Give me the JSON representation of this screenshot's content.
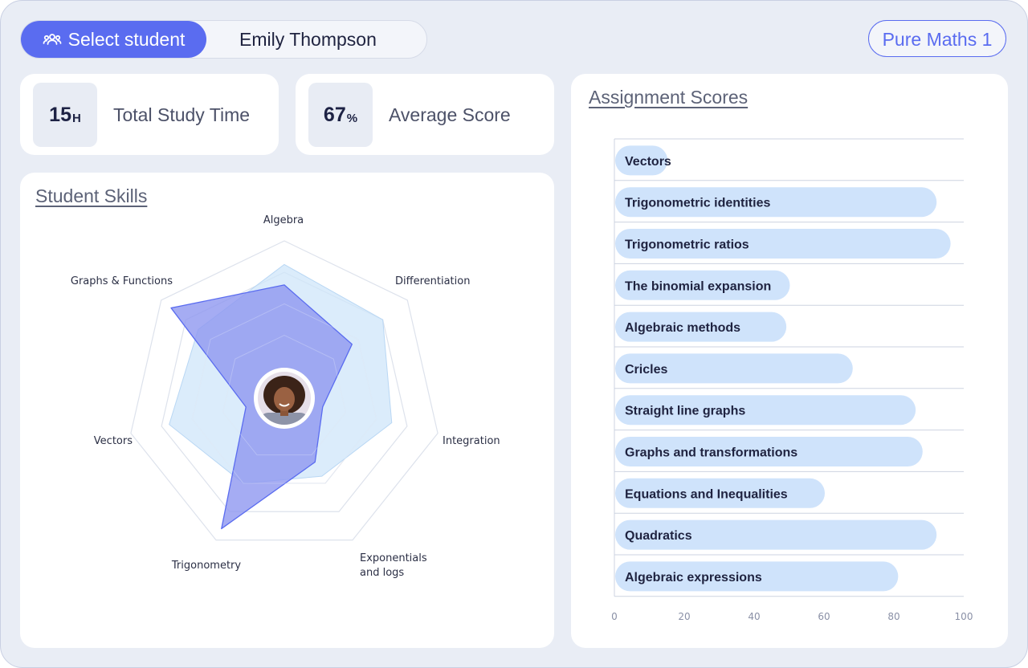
{
  "header": {
    "select_student_label": "Select student",
    "student_name": "Emily Thompson",
    "course": "Pure Maths 1"
  },
  "stats": {
    "study_time": {
      "value": "15",
      "unit": "H",
      "label": "Total Study Time"
    },
    "average_score": {
      "value": "67",
      "unit": "%",
      "label": "Average Score"
    }
  },
  "skills": {
    "title": "Student Skills",
    "axes": [
      "Algebra",
      "Differentiation",
      "Integration",
      "Exponentials and logs",
      "Trigonometry",
      "Vectors",
      "Graphs & Functions"
    ],
    "axis_label_lines": [
      [
        "Algebra"
      ],
      [
        "Differentiation"
      ],
      [
        "Integration"
      ],
      [
        "Exponentials",
        "and logs"
      ],
      [
        "Trigonometry"
      ],
      [
        "Vectors"
      ],
      [
        "Graphs & Functions"
      ]
    ],
    "student": [
      0.72,
      0.55,
      0.25,
      0.45,
      0.92,
      0.25,
      0.92
    ],
    "class_average": [
      0.85,
      0.8,
      0.7,
      0.55,
      0.6,
      0.75,
      0.7
    ]
  },
  "chart_data": {
    "type": "bar",
    "title": "Assignment Scores",
    "orientation": "horizontal",
    "categories": [
      "Vectors",
      "Trigonometric identities",
      "Trigonometric ratios",
      "The binomial expansion",
      "Algebraic methods",
      "Cricles",
      "Straight line graphs",
      "Graphs and transformations",
      "Equations and Inequalities",
      "Quadratics",
      "Algebraic expressions"
    ],
    "values": [
      15,
      92,
      96,
      50,
      49,
      68,
      86,
      88,
      60,
      92,
      81
    ],
    "xlim": [
      0,
      100
    ],
    "xticks": [
      0,
      20,
      40,
      60,
      80,
      100
    ],
    "xlabel": "",
    "ylabel": ""
  },
  "colors": {
    "accent": "#5a6cf0",
    "bar_fill": "#cfe3fb",
    "student_fill": "#8e97f0",
    "class_fill": "#cfe5f9"
  }
}
